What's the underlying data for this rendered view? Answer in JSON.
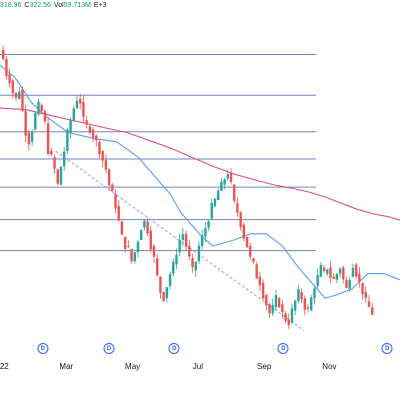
{
  "chart_data": {
    "type": "candlestick",
    "title": "",
    "xlabel": "",
    "ylabel": "",
    "grid": false,
    "ohlc_readout": {
      "high_text": "318.96",
      "close_label": "C",
      "close_text": "322.56",
      "volume_label": "Vol",
      "volume_text": "59.713M",
      "symbol_fragment": "E+3"
    },
    "x_tick_labels": [
      "22",
      "Mar",
      "May",
      "Jul",
      "Sep",
      "Nov"
    ],
    "x_tick_days": [
      0,
      58,
      120,
      181,
      243,
      304
    ],
    "x_range_days": [
      -4,
      370
    ],
    "y_range": [
      238,
      345
    ],
    "dividend_marker_label": "D",
    "dividend_days": [
      36,
      98,
      159,
      261,
      358
    ],
    "horizontal_levels": [
      330.5,
      317.2,
      305.3,
      296.4,
      287.2,
      276.6,
      266.5
    ],
    "trendline": {
      "from": {
        "day": 48,
        "price": 299.0
      },
      "to": {
        "day": 280,
        "price": 240.5
      }
    },
    "moving_averages": [
      {
        "color": "#5b9cf6",
        "points": [
          [
            -4,
            327
          ],
          [
            10,
            323
          ],
          [
            25,
            315
          ],
          [
            40,
            310
          ],
          [
            60,
            305
          ],
          [
            85,
            303
          ],
          [
            105,
            302
          ],
          [
            125,
            297
          ],
          [
            140,
            291
          ],
          [
            155,
            285
          ],
          [
            165,
            279
          ],
          [
            175,
            275
          ],
          [
            185,
            271
          ],
          [
            195,
            268
          ],
          [
            205,
            269
          ],
          [
            215,
            270
          ],
          [
            230,
            272
          ],
          [
            245,
            272
          ],
          [
            260,
            268
          ],
          [
            275,
            261
          ],
          [
            290,
            255
          ],
          [
            300,
            251
          ],
          [
            310,
            252
          ],
          [
            325,
            254
          ],
          [
            340,
            259
          ],
          [
            355,
            259
          ],
          [
            370,
            257
          ]
        ]
      },
      {
        "color": "#e0507a",
        "points": [
          [
            -4,
            313
          ],
          [
            20,
            312.5
          ],
          [
            45,
            310.5
          ],
          [
            70,
            308.5
          ],
          [
            95,
            306.5
          ],
          [
            115,
            305
          ],
          [
            135,
            302.5
          ],
          [
            155,
            300
          ],
          [
            175,
            297
          ],
          [
            195,
            294
          ],
          [
            215,
            291.5
          ],
          [
            235,
            289.5
          ],
          [
            255,
            287.7
          ],
          [
            270,
            286.8
          ],
          [
            285,
            285.6
          ],
          [
            300,
            284
          ],
          [
            315,
            282
          ],
          [
            330,
            280
          ],
          [
            345,
            278.5
          ],
          [
            360,
            277.5
          ],
          [
            370,
            276.5
          ]
        ]
      }
    ],
    "price_path": [
      [
        -4,
        332
      ],
      [
        -1,
        329
      ],
      [
        2,
        324
      ],
      [
        5,
        322
      ],
      [
        8,
        318
      ],
      [
        11,
        316
      ],
      [
        14,
        319
      ],
      [
        17,
        312
      ],
      [
        20,
        305
      ],
      [
        23,
        302
      ],
      [
        26,
        306
      ],
      [
        29,
        311
      ],
      [
        32,
        314
      ],
      [
        35,
        312
      ],
      [
        38,
        308
      ],
      [
        41,
        299
      ],
      [
        44,
        297
      ],
      [
        47,
        293
      ],
      [
        50,
        288
      ],
      [
        53,
        294
      ],
      [
        56,
        299
      ],
      [
        59,
        305
      ],
      [
        62,
        309
      ],
      [
        65,
        313
      ],
      [
        68,
        316
      ],
      [
        71,
        315
      ],
      [
        74,
        309
      ],
      [
        77,
        307
      ],
      [
        80,
        306
      ],
      [
        83,
        304
      ],
      [
        86,
        302
      ],
      [
        89,
        299
      ],
      [
        92,
        296
      ],
      [
        95,
        293
      ],
      [
        98,
        288
      ],
      [
        101,
        285
      ],
      [
        104,
        281
      ],
      [
        107,
        276
      ],
      [
        110,
        271
      ],
      [
        113,
        268
      ],
      [
        116,
        267
      ],
      [
        119,
        263
      ],
      [
        122,
        266
      ],
      [
        125,
        270
      ],
      [
        128,
        274
      ],
      [
        131,
        276
      ],
      [
        134,
        273
      ],
      [
        137,
        268
      ],
      [
        140,
        264
      ],
      [
        143,
        258
      ],
      [
        146,
        253
      ],
      [
        149,
        251
      ],
      [
        152,
        255
      ],
      [
        155,
        259
      ],
      [
        158,
        262
      ],
      [
        161,
        266
      ],
      [
        164,
        270
      ],
      [
        167,
        272
      ],
      [
        170,
        268
      ],
      [
        173,
        264
      ],
      [
        176,
        260
      ],
      [
        179,
        263
      ],
      [
        182,
        268
      ],
      [
        185,
        271
      ],
      [
        188,
        274
      ],
      [
        191,
        277
      ],
      [
        194,
        281
      ],
      [
        197,
        283
      ],
      [
        200,
        286
      ],
      [
        203,
        288
      ],
      [
        206,
        290
      ],
      [
        209,
        292
      ],
      [
        212,
        288
      ],
      [
        215,
        282
      ],
      [
        218,
        279
      ],
      [
        221,
        275
      ],
      [
        224,
        271
      ],
      [
        227,
        268
      ],
      [
        230,
        264
      ],
      [
        233,
        262
      ],
      [
        236,
        258
      ],
      [
        239,
        256
      ],
      [
        242,
        252
      ],
      [
        245,
        249
      ],
      [
        248,
        246
      ],
      [
        251,
        248
      ],
      [
        254,
        251
      ],
      [
        257,
        249
      ],
      [
        260,
        246
      ],
      [
        263,
        244
      ],
      [
        266,
        243
      ],
      [
        269,
        247
      ],
      [
        272,
        250
      ],
      [
        275,
        253
      ],
      [
        278,
        251
      ],
      [
        281,
        248
      ],
      [
        284,
        247
      ],
      [
        287,
        251
      ],
      [
        290,
        255
      ],
      [
        293,
        258
      ],
      [
        296,
        261
      ],
      [
        299,
        259
      ],
      [
        302,
        261
      ],
      [
        305,
        258
      ],
      [
        308,
        257
      ],
      [
        311,
        259
      ],
      [
        314,
        261
      ],
      [
        317,
        257
      ],
      [
        320,
        254
      ],
      [
        323,
        258
      ],
      [
        326,
        262
      ],
      [
        329,
        259
      ],
      [
        332,
        256
      ],
      [
        335,
        253
      ],
      [
        338,
        250
      ],
      [
        341,
        248
      ],
      [
        344,
        246
      ]
    ]
  }
}
